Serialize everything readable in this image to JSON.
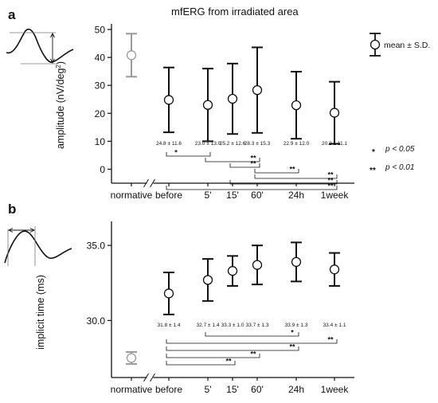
{
  "title": "mfERG from irradiated area",
  "panels": [
    {
      "label": "a",
      "ylabel_main": "amplitude (nV/deg",
      "ylabel_sup": "2",
      "ylabel_end": ")",
      "legend_text": "mean ± S.D.",
      "sig_legend": [
        {
          "stars": "*",
          "text": "p < 0.05"
        },
        {
          "stars": "**",
          "text": "p < 0.01"
        }
      ]
    },
    {
      "label": "b",
      "ylabel": "implicit time (ms)"
    }
  ],
  "chart_data": [
    {
      "type": "scatter",
      "panel": "a",
      "error_bars": "mean ± S.D.",
      "categories": [
        "normative",
        "before",
        "5'",
        "15'",
        "60'",
        "24h",
        "1week"
      ],
      "ylim": [
        -5,
        52
      ],
      "yticks": [
        0,
        10,
        20,
        30,
        40,
        50
      ],
      "grid": false,
      "axis_break_after": "normative",
      "normative": {
        "mean": 40.8,
        "sd": 7.7,
        "color": "#9a9a9a"
      },
      "points": [
        {
          "cat": "before",
          "mean": 24.8,
          "sd": 11.6,
          "label": "24.8 ± 11.6"
        },
        {
          "cat": "5'",
          "mean": 23.0,
          "sd": 13.0,
          "label": "23.0 ± 13.0"
        },
        {
          "cat": "15'",
          "mean": 25.2,
          "sd": 12.6,
          "label": "25.2 ± 12.6"
        },
        {
          "cat": "60'",
          "mean": 28.3,
          "sd": 15.3,
          "label": "28.3 ± 15.3"
        },
        {
          "cat": "24h",
          "mean": 22.9,
          "sd": 12.0,
          "label": "22.9 ± 12.0"
        },
        {
          "cat": "1week",
          "mean": 20.2,
          "sd": 11.1,
          "label": "20.2 ± 11.1"
        }
      ],
      "significance": [
        {
          "from": "before",
          "to": "5'",
          "stars": "*"
        },
        {
          "from": "5'",
          "to": "60'",
          "stars": "**"
        },
        {
          "from": "15'",
          "to": "60'",
          "stars": "**"
        },
        {
          "from": "60'",
          "to": "24h",
          "stars": "**"
        },
        {
          "from": "60'",
          "to": "1week",
          "stars": "**"
        },
        {
          "from": "15'",
          "to": "1week",
          "stars": "**"
        },
        {
          "from": "before",
          "to": "1week",
          "stars": "**"
        }
      ]
    },
    {
      "type": "scatter",
      "panel": "b",
      "error_bars": "mean ± S.D.",
      "categories": [
        "normative",
        "before",
        "5'",
        "15'",
        "60'",
        "24h",
        "1week"
      ],
      "ylim": [
        26.2,
        36.6
      ],
      "yticks": [
        30.0,
        35.0
      ],
      "grid": false,
      "axis_break_after": "normative",
      "normative": {
        "mean": 27.5,
        "sd": 0.4,
        "color": "#9a9a9a"
      },
      "points": [
        {
          "cat": "before",
          "mean": 31.8,
          "sd": 1.4,
          "label": "31.8 ± 1.4"
        },
        {
          "cat": "5'",
          "mean": 32.7,
          "sd": 1.4,
          "label": "32.7 ± 1.4"
        },
        {
          "cat": "15'",
          "mean": 33.3,
          "sd": 1.0,
          "label": "33.3 ± 1.0"
        },
        {
          "cat": "60'",
          "mean": 33.7,
          "sd": 1.3,
          "label": "33.7 ± 1.3"
        },
        {
          "cat": "24h",
          "mean": 33.9,
          "sd": 1.3,
          "label": "33.9 ± 1.3"
        },
        {
          "cat": "1week",
          "mean": 33.4,
          "sd": 1.1,
          "label": "33.4 ± 1.1"
        }
      ],
      "significance": [
        {
          "from": "5'",
          "to": "24h",
          "stars": "*"
        },
        {
          "from": "before",
          "to": "1week",
          "stars": "**"
        },
        {
          "from": "before",
          "to": "24h",
          "stars": "**"
        },
        {
          "from": "before",
          "to": "60'",
          "stars": "**"
        },
        {
          "from": "before",
          "to": "15'",
          "stars": "**"
        }
      ]
    }
  ]
}
